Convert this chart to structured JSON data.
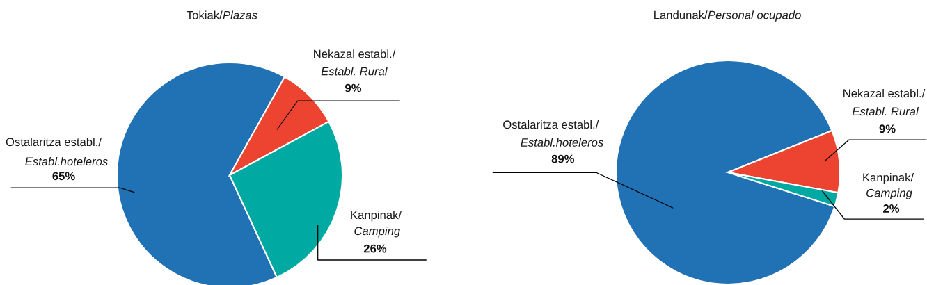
{
  "chart_data": [
    {
      "type": "pie",
      "title": "Tokiak/Plazas",
      "categories": [
        "Ostalaritza establ./Establ.hoteleros",
        "Nekazal establ./Establ. Rural",
        "Kanpinak/Camping"
      ],
      "values": [
        65,
        9,
        26
      ],
      "value_labels": [
        "65%",
        "9%",
        "26%"
      ],
      "colors": [
        "#2171b5",
        "#ed4431",
        "#00a9a1"
      ]
    },
    {
      "type": "pie",
      "title": "Landunak/Personal ocupado",
      "categories": [
        "Ostalaritza establ./Establ.hoteleros",
        "Nekazal establ./Establ. Rural",
        "Kanpinak/Camping"
      ],
      "values": [
        89,
        9,
        2
      ],
      "value_labels": [
        "89%",
        "9%",
        "2%"
      ],
      "colors": [
        "#2171b5",
        "#ed4431",
        "#00a9a1"
      ]
    }
  ]
}
